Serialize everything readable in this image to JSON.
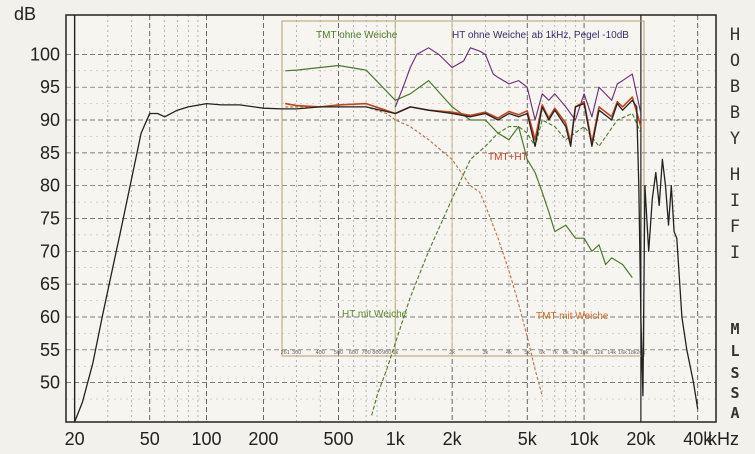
{
  "chart_data": {
    "type": "line",
    "x_scale": "log",
    "xlim": [
      18,
      50000
    ],
    "ylim": [
      44,
      106
    ],
    "ylabel": "dB",
    "xunit": "kHz",
    "grid": true,
    "y_ticks": [
      100,
      95,
      90,
      85,
      80,
      75,
      70,
      65,
      60,
      55,
      50
    ],
    "x_ticks": [
      {
        "value": 20,
        "label": "20"
      },
      {
        "value": 50,
        "label": "50"
      },
      {
        "value": 100,
        "label": "100"
      },
      {
        "value": 200,
        "label": "200"
      },
      {
        "value": 500,
        "label": "500"
      },
      {
        "value": 1000,
        "label": "1k"
      },
      {
        "value": 2000,
        "label": "2k"
      },
      {
        "value": 5000,
        "label": "5k"
      },
      {
        "value": 10000,
        "label": "10k"
      },
      {
        "value": 20000,
        "label": "20k"
      },
      {
        "value": 40000,
        "label": "40k"
      }
    ],
    "inner_x_labels": [
      {
        "value": 261,
        "label": "261"
      },
      {
        "value": 300,
        "label": "300"
      },
      {
        "value": 400,
        "label": "400"
      },
      {
        "value": 500,
        "label": "500"
      },
      {
        "value": 600,
        "label": "600"
      },
      {
        "value": 700,
        "label": "700"
      },
      {
        "value": 800,
        "label": "800"
      },
      {
        "value": 900,
        "label": "900"
      },
      {
        "value": 1000,
        "label": "1k"
      },
      {
        "value": 2000,
        "label": "2k"
      },
      {
        "value": 3000,
        "label": "3k"
      },
      {
        "value": 4000,
        "label": "4k"
      },
      {
        "value": 5000,
        "label": "5k"
      },
      {
        "value": 6000,
        "label": "6k"
      },
      {
        "value": 7000,
        "label": "7k"
      },
      {
        "value": 8000,
        "label": "8k"
      },
      {
        "value": 9000,
        "label": "9k"
      },
      {
        "value": 10000,
        "label": "10k"
      },
      {
        "value": 12000,
        "label": "12k"
      },
      {
        "value": 14000,
        "label": "14k"
      },
      {
        "value": 16000,
        "label": "16k"
      },
      {
        "value": 18000,
        "label": "18k"
      },
      {
        "value": 20000,
        "label": "20k"
      }
    ],
    "series": [
      {
        "name": "",
        "color": "#222222",
        "width": 1.3,
        "dash": "",
        "x": [
          20,
          22,
          25,
          28,
          31,
          35,
          40,
          45,
          50,
          55,
          60,
          70,
          80,
          100,
          120,
          150,
          200,
          250,
          300,
          400,
          500,
          700,
          1000,
          1200,
          1500,
          2000,
          2500,
          3000,
          3500,
          4000,
          4500,
          5000,
          5500,
          6000,
          6500,
          7000,
          8000,
          8500,
          9000,
          10000,
          11000,
          12000,
          14000,
          15000,
          16000,
          18000,
          19000,
          19500,
          20000,
          20500,
          21000,
          22000,
          23000,
          24000,
          25000,
          26000,
          27000,
          28000,
          29000,
          30000,
          31000,
          33000,
          35000,
          38000,
          40000
        ],
        "y": [
          44,
          47,
          53,
          60,
          66,
          73,
          81,
          88,
          91,
          91,
          90.5,
          91.5,
          92,
          92.5,
          92.3,
          92.3,
          91.8,
          91.7,
          91.7,
          92,
          92,
          92,
          91,
          92,
          91.5,
          91,
          90.5,
          91,
          90,
          91,
          90.5,
          91,
          86,
          92,
          90,
          91.5,
          89,
          86,
          92,
          92.5,
          86,
          91.5,
          90,
          92.5,
          91.5,
          93,
          92,
          80,
          60,
          48,
          80,
          70,
          78,
          82,
          77,
          84,
          80,
          74,
          80,
          73,
          72,
          60,
          55,
          50,
          46
        ]
      },
      {
        "name": "TMT+HT",
        "color": "#c8401e",
        "width": 1.6,
        "dash": "",
        "x": [
          261,
          300,
          400,
          500,
          700,
          1000,
          1200,
          1500,
          2000,
          2500,
          3000,
          3500,
          4000,
          4500,
          5000,
          5500,
          6000,
          6500,
          7000,
          8000,
          8500,
          9000,
          10000,
          11000,
          12000,
          14000,
          15000,
          16000,
          18000,
          20000
        ],
        "y": [
          92.5,
          92.2,
          92,
          92.3,
          92.5,
          91,
          92,
          91.5,
          91.2,
          90.7,
          91.2,
          90.3,
          91.3,
          90.8,
          91.4,
          87,
          92.3,
          90.3,
          91.8,
          89.5,
          86.5,
          92,
          92.8,
          86.5,
          92,
          90.5,
          92.8,
          92,
          93.5,
          89
        ]
      },
      {
        "name": "TMT ohne Weiche",
        "color": "#4d7a2a",
        "width": 1.2,
        "dash": "",
        "x": [
          261,
          300,
          400,
          500,
          700,
          1000,
          1200,
          1500,
          2000,
          2500,
          3000,
          3500,
          4000,
          4500,
          5000,
          5500,
          6000,
          6500,
          7000,
          8000,
          9000,
          10000,
          11000,
          12000,
          13000,
          14000,
          16000,
          18000
        ],
        "y": [
          97.5,
          97.6,
          98,
          98.3,
          97.6,
          93,
          94,
          96,
          92,
          90,
          90,
          88,
          87,
          89,
          84,
          82,
          79,
          76,
          73,
          74,
          72,
          72,
          70,
          71,
          68,
          69,
          68,
          66
        ]
      },
      {
        "name": "HT ohne Weiche, ab 1kHz, Pegel -10dB",
        "color": "#6a2a78",
        "width": 1.1,
        "dash": "",
        "x": [
          1000,
          1100,
          1200,
          1300,
          1500,
          1700,
          2000,
          2300,
          2500,
          2800,
          3000,
          3300,
          3500,
          4000,
          4500,
          5000,
          5500,
          6000,
          6500,
          7000,
          8000,
          9000,
          10000,
          11000,
          12000,
          14000,
          15000,
          16000,
          18000,
          20000
        ],
        "y": [
          92,
          95,
          98,
          100,
          101,
          100,
          98,
          99,
          101,
          100.5,
          100,
          97,
          96.5,
          95.5,
          96,
          95,
          90,
          94,
          93,
          94,
          92,
          90,
          94,
          90.5,
          95,
          93,
          95.5,
          96,
          97,
          91
        ]
      },
      {
        "name": "HT mit Weiche",
        "color": "#4d7a2a",
        "width": 1.1,
        "dash": "4 2",
        "x": [
          750,
          800,
          900,
          1000,
          1200,
          1500,
          2000,
          2500,
          3000,
          3500,
          4000,
          4500,
          5000,
          5500,
          6000,
          7000,
          8000,
          10000,
          12000,
          15000,
          18000,
          20000
        ],
        "y": [
          45,
          48,
          52,
          56,
          63,
          70,
          78,
          84,
          86,
          88,
          89,
          89,
          88,
          86,
          90,
          89,
          87,
          89,
          86,
          90,
          91,
          88
        ]
      },
      {
        "name": "TMT mit Weiche",
        "color": "#b87040",
        "width": 1.1,
        "dash": "3 2",
        "x": [
          261,
          300,
          400,
          500,
          700,
          900,
          1000,
          1200,
          1500,
          2000,
          2500,
          2800,
          3000,
          3500,
          4000,
          4500,
          5000,
          5500,
          6000
        ],
        "y": [
          92,
          92,
          92,
          92,
          92,
          91,
          90,
          89,
          87,
          84,
          80,
          79,
          77,
          72,
          67,
          62,
          57,
          52,
          48
        ]
      }
    ],
    "annotations": [
      {
        "text": "TMT ohne Weiche",
        "color": "#4d7a2a"
      },
      {
        "text": "HT ohne Weiche, ab 1kHz, Pegel -10dB",
        "color": "#3a2a6a"
      },
      {
        "text": "TMT+HT",
        "color": "#c8401e"
      },
      {
        "text": "HT mit Weiche",
        "color": "#5e8a2e"
      },
      {
        "text": "TMT mit Weiche",
        "color": "#d06820"
      }
    ]
  },
  "brand": {
    "hobby": [
      "H",
      "O",
      "B",
      "B",
      "Y"
    ],
    "hifi": [
      "H",
      "I",
      "F",
      "I"
    ],
    "mlssa": [
      "M",
      "L",
      "S",
      "S",
      "A"
    ]
  }
}
